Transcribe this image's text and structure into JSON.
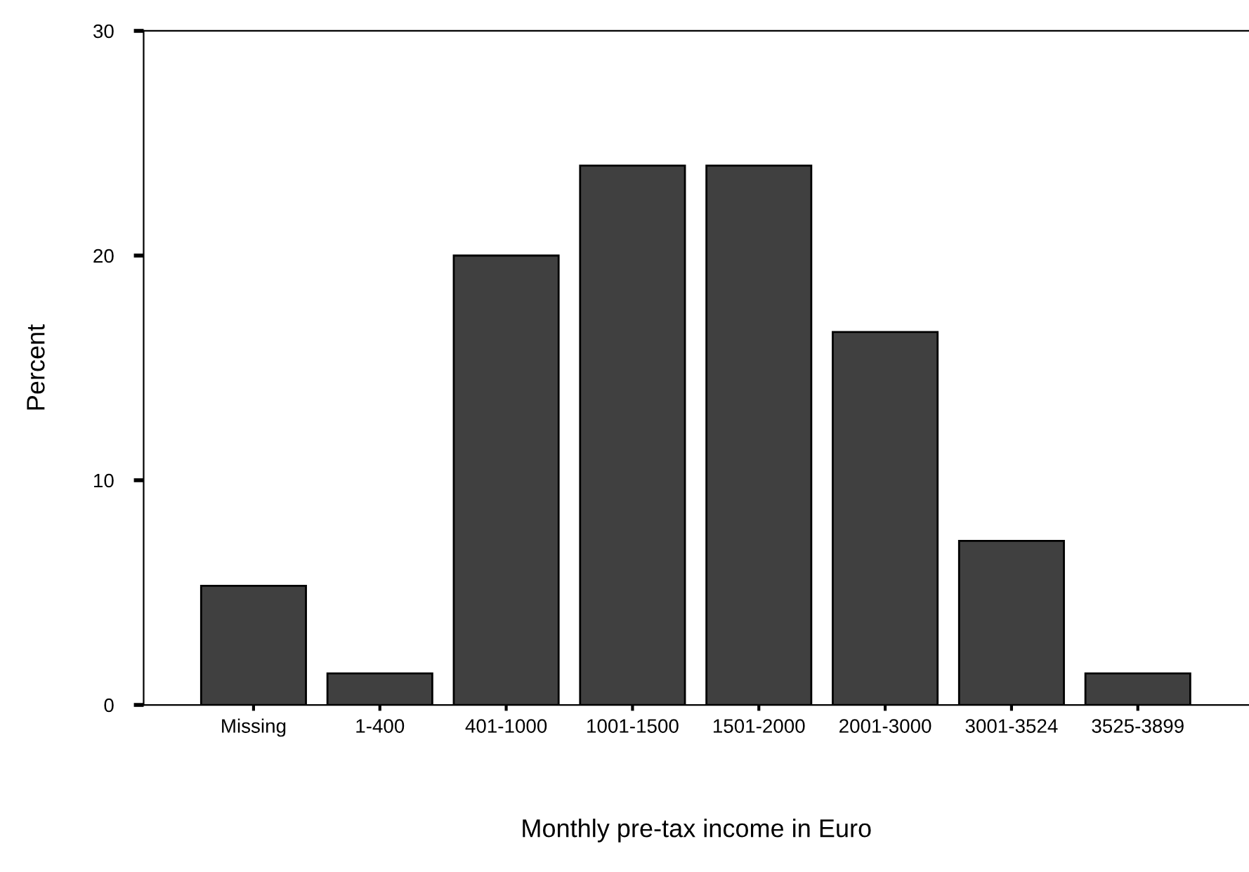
{
  "chart_data": {
    "type": "bar",
    "xlabel": "Monthly pre-tax income in Euro",
    "ylabel": "Percent",
    "categories": [
      "Missing",
      "1-400",
      "401-1000",
      "1001-1500",
      "1501-2000",
      "2001-3000",
      "3001-3524",
      "3525-3899"
    ],
    "values": [
      5.3,
      1.4,
      20.0,
      24.0,
      24.0,
      16.6,
      7.3,
      1.4
    ],
    "color": "#404040",
    "ylim": [
      0,
      30
    ],
    "yticks": [
      0,
      10,
      20,
      30
    ],
    "grid": false,
    "legend": false
  }
}
